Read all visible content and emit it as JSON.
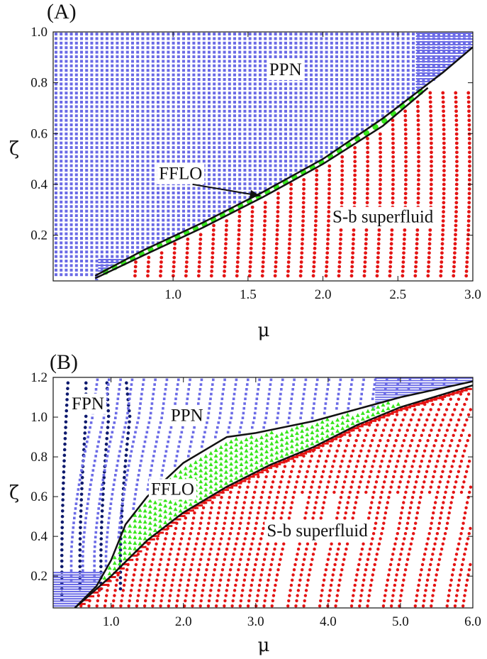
{
  "colors": {
    "ppn": "#6a6ae6",
    "fpn": "#0e1a6e",
    "sb": "#e41414",
    "fflo": "#39e61e",
    "boundary": "#111111"
  },
  "chart_data": [
    {
      "id": "A",
      "type": "scatter",
      "panel_label": "(A)",
      "xlabel": "μ",
      "ylabel": "ζ",
      "xlim": [
        0.2,
        3.0
      ],
      "ylim": [
        0.02,
        1.0
      ],
      "xticks": [
        "1.0",
        "1.5",
        "2.0",
        "2.5",
        "3.0"
      ],
      "xtick_values": [
        1.0,
        1.5,
        2.0,
        2.5,
        3.0
      ],
      "yticks": [
        "0.2",
        "0.4",
        "0.6",
        "0.8",
        "1.0"
      ],
      "ytick_values": [
        0.2,
        0.4,
        0.6,
        0.8,
        1.0
      ],
      "region_labels": [
        {
          "text": "PPN",
          "x": 1.75,
          "y": 0.83
        },
        {
          "text": "FFLO",
          "x": 1.05,
          "y": 0.42
        },
        {
          "text": "S-b superfluid",
          "x": 2.4,
          "y": 0.25
        }
      ],
      "annotation_arrow": {
        "from": [
          1.13,
          0.4
        ],
        "to": [
          1.58,
          0.355
        ]
      },
      "boundary_upper": [
        [
          0.48,
          0.04
        ],
        [
          0.8,
          0.14
        ],
        [
          1.2,
          0.25
        ],
        [
          1.6,
          0.37
        ],
        [
          2.0,
          0.5
        ],
        [
          2.4,
          0.66
        ],
        [
          2.8,
          0.84
        ],
        [
          3.0,
          0.94
        ]
      ],
      "boundary_lower": [
        [
          0.48,
          0.03
        ],
        [
          0.8,
          0.12
        ],
        [
          1.2,
          0.23
        ],
        [
          1.6,
          0.35
        ],
        [
          2.0,
          0.48
        ],
        [
          2.4,
          0.63
        ],
        [
          2.7,
          0.78
        ]
      ],
      "fflo_line": [
        [
          0.6,
          0.06
        ],
        [
          1.0,
          0.18
        ],
        [
          1.4,
          0.29
        ],
        [
          1.8,
          0.42
        ],
        [
          2.2,
          0.56
        ],
        [
          2.5,
          0.67
        ],
        [
          2.7,
          0.8
        ]
      ]
    },
    {
      "id": "B",
      "type": "scatter",
      "panel_label": "(B)",
      "xlabel": "μ",
      "ylabel": "ζ",
      "xlim": [
        0.2,
        6.0
      ],
      "ylim": [
        0.04,
        1.2
      ],
      "xticks": [
        "1.0",
        "2.0",
        "3.0",
        "4.0",
        "5.0",
        "6.0"
      ],
      "xtick_values": [
        1.0,
        2.0,
        3.0,
        4.0,
        5.0,
        6.0
      ],
      "yticks": [
        "0.2",
        "0.4",
        "0.6",
        "0.8",
        "1.0",
        "1.2"
      ],
      "ytick_values": [
        0.2,
        0.4,
        0.6,
        0.8,
        1.0,
        1.2
      ],
      "region_labels": [
        {
          "text": "FPN",
          "x": 0.68,
          "y": 1.04
        },
        {
          "text": "PPN",
          "x": 2.05,
          "y": 0.98
        },
        {
          "text": "FFLO",
          "x": 1.85,
          "y": 0.61
        },
        {
          "text": "S-b superfluid",
          "x": 3.85,
          "y": 0.4
        }
      ],
      "boundary_upper": [
        [
          0.5,
          0.04
        ],
        [
          0.8,
          0.15
        ],
        [
          1.0,
          0.28
        ],
        [
          1.2,
          0.46
        ],
        [
          1.5,
          0.6
        ],
        [
          2.0,
          0.77
        ],
        [
          2.6,
          0.9
        ],
        [
          3.0,
          0.92
        ],
        [
          3.8,
          0.98
        ],
        [
          4.5,
          1.05
        ],
        [
          5.0,
          1.1
        ],
        [
          6.0,
          1.18
        ]
      ],
      "boundary_lower": [
        [
          0.5,
          0.04
        ],
        [
          1.0,
          0.2
        ],
        [
          1.5,
          0.38
        ],
        [
          2.0,
          0.52
        ],
        [
          2.6,
          0.65
        ],
        [
          3.2,
          0.76
        ],
        [
          3.8,
          0.85
        ],
        [
          4.4,
          0.96
        ],
        [
          5.0,
          1.05
        ],
        [
          6.0,
          1.16
        ]
      ],
      "fpn_columns": [
        0.32,
        0.57,
        0.86,
        1.13
      ]
    }
  ]
}
